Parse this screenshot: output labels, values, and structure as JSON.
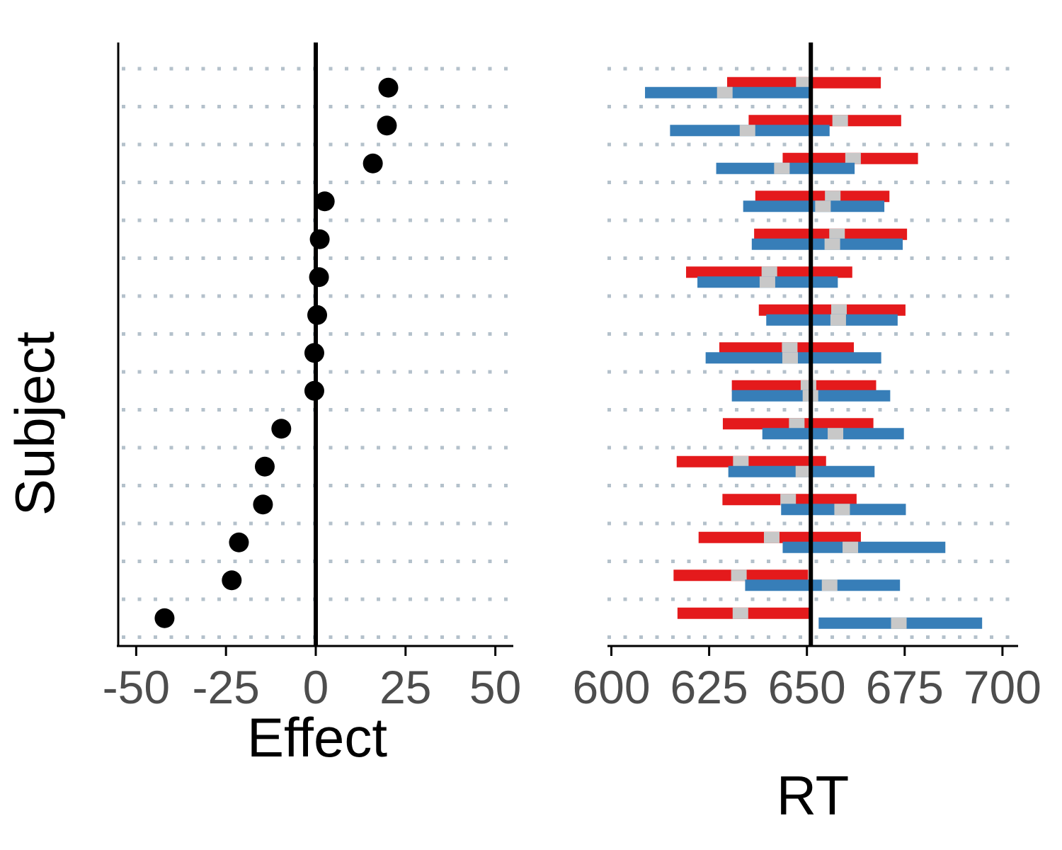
{
  "chart_data": [
    {
      "type": "scatter",
      "xlabel": "Effect",
      "ylabel": "Subject",
      "xlim": [
        -55,
        55
      ],
      "xticks": [
        "-50",
        "-25",
        "0",
        "25",
        "50"
      ],
      "reference_x": 0,
      "grid": "horizontal dotted",
      "point_color": "#000000",
      "effects": [
        20.2,
        19.8,
        15.9,
        2.5,
        1.1,
        0.9,
        0.4,
        -0.4,
        -0.4,
        -9.6,
        -14.2,
        -14.7,
        -21.4,
        -23.4,
        -42.1
      ]
    },
    {
      "type": "interval",
      "xlabel": "RT",
      "ylabel": "",
      "xlim": [
        599,
        704
      ],
      "xticks": [
        "600",
        "625",
        "650",
        "675",
        "700"
      ],
      "reference_x": 651,
      "grid": "horizontal dotted",
      "colors": {
        "condition_1": "#e41a1c",
        "condition_2": "#377eb8",
        "mean_marker": "#c8c8c8",
        "grid": "#b4c1cb"
      },
      "subjects": [
        {
          "cond1": [
            629.6,
            649.2,
            668.9
          ],
          "cond2": [
            608.6,
            629.0,
            651.0
          ]
        },
        {
          "cond1": [
            635.1,
            658.5,
            674.1
          ],
          "cond2": [
            615.0,
            634.8,
            655.8
          ]
        },
        {
          "cond1": [
            643.8,
            661.8,
            678.4
          ],
          "cond2": [
            626.8,
            643.6,
            662.2
          ]
        },
        {
          "cond1": [
            636.8,
            656.6,
            671.1
          ],
          "cond2": [
            633.7,
            654.1,
            669.8
          ]
        },
        {
          "cond1": [
            636.5,
            657.7,
            675.6
          ],
          "cond2": [
            635.9,
            656.5,
            674.5
          ]
        },
        {
          "cond1": [
            619.1,
            640.4,
            661.6
          ],
          "cond2": [
            622.0,
            639.9,
            657.9
          ]
        },
        {
          "cond1": [
            637.7,
            658.2,
            675.2
          ],
          "cond2": [
            639.6,
            658.0,
            673.2
          ]
        },
        {
          "cond1": [
            627.6,
            645.6,
            662.0
          ],
          "cond2": [
            624.1,
            645.7,
            669.0
          ]
        },
        {
          "cond1": [
            630.8,
            650.4,
            667.7
          ],
          "cond2": [
            630.8,
            650.9,
            671.3
          ]
        },
        {
          "cond1": [
            628.5,
            647.4,
            667.0
          ],
          "cond2": [
            638.6,
            657.3,
            674.8
          ]
        },
        {
          "cond1": [
            616.7,
            633.1,
            654.9
          ],
          "cond2": [
            629.9,
            649.1,
            667.3
          ]
        },
        {
          "cond1": [
            628.4,
            645.2,
            662.7
          ],
          "cond2": [
            643.4,
            659.0,
            675.3
          ]
        },
        {
          "cond1": [
            622.3,
            641.0,
            663.8
          ],
          "cond2": [
            643.8,
            661.1,
            685.4
          ]
        },
        {
          "cond1": [
            615.9,
            632.6,
            650.3
          ],
          "cond2": [
            634.2,
            655.8,
            673.8
          ]
        },
        {
          "cond1": [
            616.9,
            633.0,
            650.7
          ],
          "cond2": [
            653.0,
            673.5,
            694.8
          ]
        }
      ]
    }
  ]
}
